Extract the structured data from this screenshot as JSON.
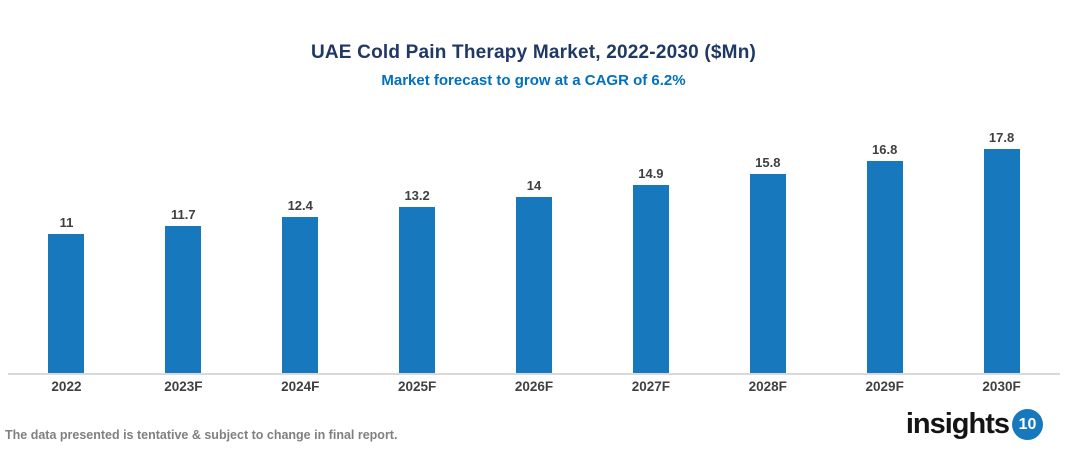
{
  "header": {
    "title": "UAE Cold Pain Therapy Market, 2022-2030 ($Mn)",
    "subtitle": "Market forecast to grow at a CAGR of 6.2%"
  },
  "chart_data": {
    "type": "bar",
    "title": "UAE Cold Pain Therapy Market, 2022-2030 ($Mn)",
    "subtitle": "Market forecast to grow at a CAGR of 6.2%",
    "categories": [
      "2022",
      "2023F",
      "2024F",
      "2025F",
      "2026F",
      "2027F",
      "2028F",
      "2029F",
      "2030F"
    ],
    "values": [
      11,
      11.7,
      12.4,
      13.2,
      14,
      14.9,
      15.8,
      16.8,
      17.8
    ],
    "data_labels": [
      "11",
      "11.7",
      "12.4",
      "13.2",
      "14",
      "14.9",
      "15.8",
      "16.8",
      "17.8"
    ],
    "xlabel": "",
    "ylabel": "",
    "ylim": [
      0,
      18
    ],
    "grid": false,
    "legend_position": "none",
    "bar_color": "#1878BE",
    "axis_line_color": "#D9D9D9",
    "label_color": "#404040"
  },
  "footer": {
    "disclaimer": "The data presented is tentative & subject to change in final report."
  },
  "logo": {
    "text": "insights",
    "badge": "10",
    "badge_color": "#1878BE"
  }
}
